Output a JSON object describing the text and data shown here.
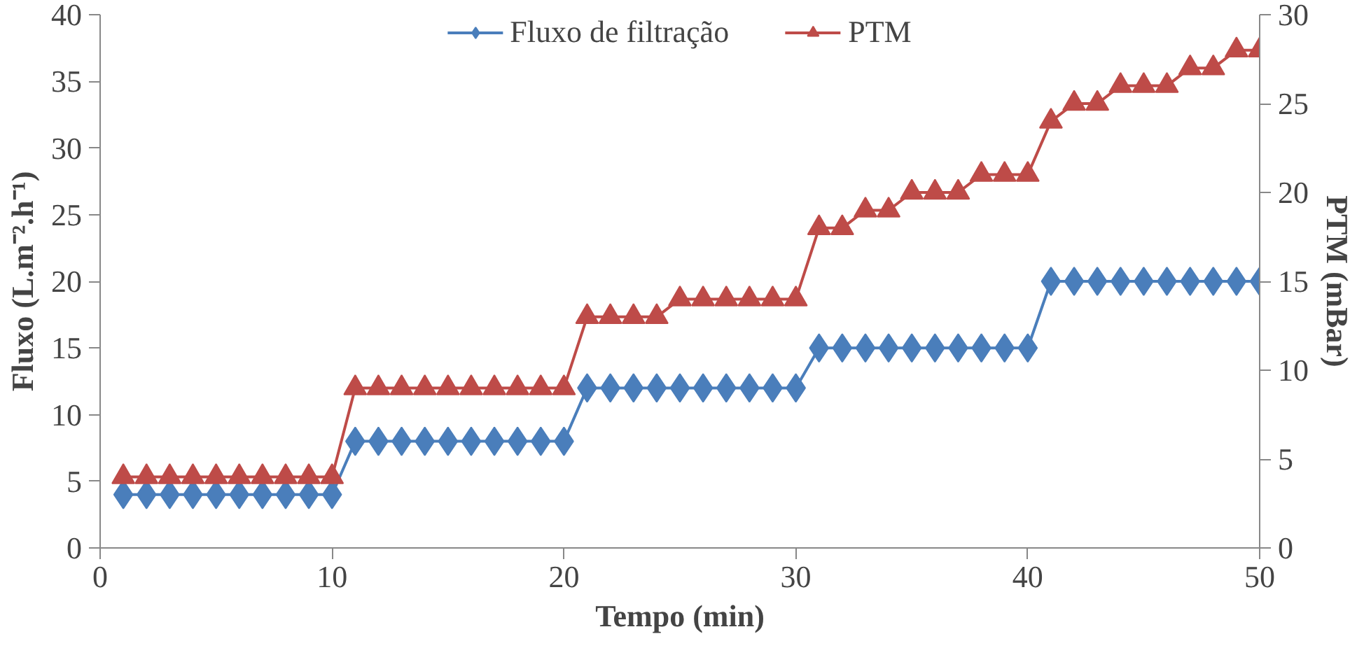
{
  "chart_data": {
    "type": "line",
    "xlabel": "Tempo (min)",
    "ylabel": "Fluxo (L.m⁻².h⁻¹)",
    "y2label": "PTM (mBar)",
    "x": [
      1,
      2,
      3,
      4,
      5,
      6,
      7,
      8,
      9,
      10,
      11,
      12,
      13,
      14,
      15,
      16,
      17,
      18,
      19,
      20,
      21,
      22,
      23,
      24,
      25,
      26,
      27,
      28,
      29,
      30,
      31,
      32,
      33,
      34,
      35,
      36,
      37,
      38,
      39,
      40,
      41,
      42,
      43,
      44,
      45,
      46,
      47,
      48,
      49,
      50
    ],
    "series": [
      {
        "name": "Fluxo de filtração",
        "color": "#4a7ebb",
        "marker": "diamond",
        "values": [
          4,
          4,
          4,
          4,
          4,
          4,
          4,
          4,
          4,
          4,
          8,
          8,
          8,
          8,
          8,
          8,
          8,
          8,
          8,
          8,
          12,
          12,
          12,
          12,
          12,
          12,
          12,
          12,
          12,
          12,
          15,
          15,
          15,
          15,
          15,
          15,
          15,
          15,
          15,
          15,
          20,
          20,
          20,
          20,
          20,
          20,
          20,
          20,
          20,
          20
        ]
      },
      {
        "name": "PTM",
        "color": "#be4b48",
        "marker": "triangle",
        "axis": "y2",
        "values": [
          4,
          4,
          4,
          4,
          4,
          4,
          4,
          4,
          4,
          4,
          9,
          9,
          9,
          9,
          9,
          9,
          9,
          9,
          9,
          9,
          13,
          13,
          13,
          13,
          14,
          14,
          14,
          14,
          14,
          14,
          18,
          18,
          19,
          19,
          20,
          20,
          20,
          21,
          21,
          21,
          24,
          25,
          25,
          26,
          26,
          26,
          27,
          27,
          28,
          28
        ]
      }
    ],
    "xlim": [
      0,
      50
    ],
    "xticks": [
      0,
      10,
      20,
      30,
      40,
      50
    ],
    "ylim": [
      0,
      40
    ],
    "yticks": [
      0,
      5,
      10,
      15,
      20,
      25,
      30,
      35,
      40
    ],
    "y2lim": [
      0,
      30
    ],
    "y2ticks": [
      0,
      5,
      10,
      15,
      20,
      25,
      30
    ],
    "grid": false,
    "legend": "top",
    "line_style": "solid"
  }
}
